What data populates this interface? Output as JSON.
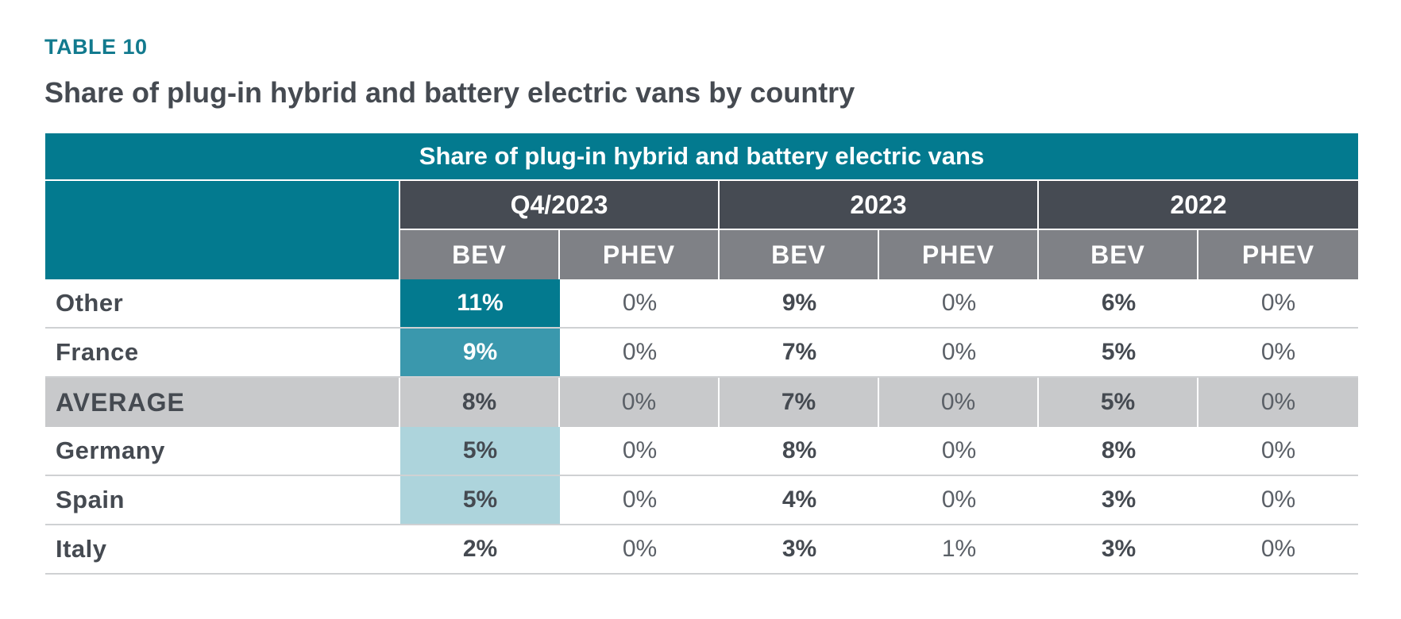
{
  "heading": {
    "table_label": "TABLE 10",
    "title": "Share of plug-in hybrid and battery electric vans by country"
  },
  "table": {
    "banner": "Share of plug-in hybrid and battery electric vans",
    "periods": [
      "Q4/2023",
      "2023",
      "2022"
    ],
    "subheaders": [
      "BEV",
      "PHEV",
      "BEV",
      "PHEV",
      "BEV",
      "PHEV"
    ],
    "rows": [
      {
        "label": "Other",
        "values": [
          "11%",
          "0%",
          "9%",
          "0%",
          "6%",
          "0%"
        ]
      },
      {
        "label": "France",
        "values": [
          "9%",
          "0%",
          "7%",
          "0%",
          "5%",
          "0%"
        ]
      },
      {
        "label": "AVERAGE",
        "values": [
          "8%",
          "0%",
          "7%",
          "0%",
          "5%",
          "0%"
        ]
      },
      {
        "label": "Germany",
        "values": [
          "5%",
          "0%",
          "8%",
          "0%",
          "8%",
          "0%"
        ]
      },
      {
        "label": "Spain",
        "values": [
          "5%",
          "0%",
          "4%",
          "0%",
          "3%",
          "0%"
        ]
      },
      {
        "label": "Italy",
        "values": [
          "2%",
          "0%",
          "3%",
          "1%",
          "3%",
          "0%"
        ]
      }
    ]
  },
  "colors": {
    "teal_dark": "#037a8f",
    "teal_mid": "#3a98ad",
    "teal_light": "#add4dc",
    "header_dark": "#464b53",
    "header_gray": "#7f8186",
    "average_gray": "#c8c9cb"
  }
}
